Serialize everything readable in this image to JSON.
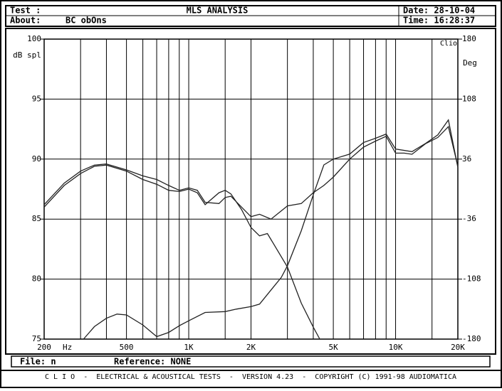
{
  "header": {
    "test": "Test :",
    "title": "MLS ANALYSIS",
    "date": "Date: 28-10-04",
    "about": "About:",
    "about_value": "BC obOns",
    "time": "Time: 16:28:37"
  },
  "chart_data": {
    "type": "line",
    "log_x": true,
    "grid": true,
    "color": "#222222",
    "ylabel": "dB spl",
    "y2label": "Deg",
    "brand": "Clio",
    "xunit": "Hz",
    "xlim": [
      200,
      20000
    ],
    "xticks": [
      200,
      500,
      {
        "value": 1000,
        "label": "1K"
      },
      {
        "value": 2000,
        "label": "2K"
      },
      {
        "value": 5000,
        "label": "5K"
      },
      {
        "value": 10000,
        "label": "10K"
      },
      {
        "value": 20000,
        "label": "20K"
      }
    ],
    "xminor": [
      300,
      400,
      600,
      700,
      800,
      900,
      1500,
      3000,
      4000,
      6000,
      7000,
      8000,
      9000,
      15000
    ],
    "ylim": [
      75,
      100
    ],
    "yticks": [
      75,
      80,
      85,
      90,
      95,
      100
    ],
    "y2lim": [
      -180,
      180
    ],
    "y2ticks": [
      -180,
      -108,
      -36,
      36,
      108,
      180
    ],
    "series": [
      {
        "color": "#222222",
        "x": [
          200,
          250,
          300,
          350,
          400,
          500,
          600,
          700,
          800,
          900,
          1000,
          1100,
          1200,
          1400,
          1500,
          1600,
          1800,
          2000,
          2200,
          2500,
          3000,
          3500,
          4000,
          4500,
          5000,
          6000,
          7000,
          8000,
          9000,
          10000,
          11000,
          12000,
          14000,
          16000,
          18000,
          20000
        ],
        "values": [
          86.2,
          88,
          89,
          89.5,
          89.6,
          89.1,
          88.6,
          88.3,
          87.8,
          87.4,
          87.6,
          87.4,
          86.4,
          86.3,
          86.8,
          86.9,
          86,
          85.2,
          85.4,
          85,
          86.1,
          86.3,
          87.2,
          87.8,
          88.5,
          90,
          91,
          91.5,
          91.9,
          90.5,
          90.5,
          90.4,
          91.3,
          91.8,
          92.7,
          89.4
        ]
      },
      {
        "color": "#222222",
        "x": [
          200,
          250,
          300,
          350,
          400,
          500,
          600,
          700,
          800,
          900,
          1000,
          1100,
          1200,
          1400,
          1500,
          1600,
          1800,
          2000,
          2200,
          2400,
          2600,
          3000,
          3500,
          4000,
          4300
        ],
        "values": [
          86,
          87.8,
          88.8,
          89.4,
          89.5,
          89,
          88.3,
          87.9,
          87.4,
          87.3,
          87.5,
          87.2,
          86.2,
          87.2,
          87.4,
          87.1,
          85.8,
          84.3,
          83.6,
          83.8,
          82.8,
          81,
          78,
          76,
          75
        ]
      },
      {
        "color": "#222222",
        "axis": "y2",
        "x": [
          310,
          350,
          400,
          450,
          500,
          600,
          700,
          800,
          900,
          1000,
          1200,
          1500,
          1700,
          2000,
          2200,
          2500,
          2800,
          3000,
          3500,
          4000,
          4500,
          5000,
          6000,
          7000,
          8000,
          9000,
          10000,
          12000,
          14000,
          16000,
          18000,
          20000
        ],
        "values": [
          -180,
          -165,
          -155,
          -150,
          -151,
          -163,
          -177,
          -172,
          -164,
          -158,
          -148,
          -147,
          -144,
          -141,
          -138,
          -121,
          -106,
          -92,
          -50,
          -7,
          29,
          36,
          42,
          56,
          61,
          66,
          48,
          45,
          55,
          65,
          83,
          26
        ]
      }
    ]
  },
  "footer": {
    "file": "File: n",
    "reference": "Reference: NONE",
    "banner": "C L I O  -  ELECTRICAL & ACOUSTICAL TESTS  -  VERSION 4.23  -  COPYRIGHT (C) 1991-98 AUDIOMATICA"
  }
}
